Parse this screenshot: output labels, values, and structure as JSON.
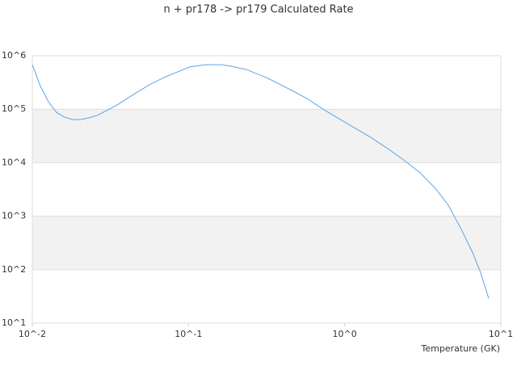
{
  "chart_data": {
    "type": "line",
    "title": "n + pr178 -> pr179 Calculated Rate",
    "x_label": "Temperature (GK)",
    "x_scale": "log",
    "y_scale": "log",
    "grid_bands": true,
    "band_color": "#f2f2f2",
    "xlim": [
      0.01,
      10
    ],
    "ylim": [
      10,
      1000000
    ],
    "xticks": [
      {
        "value": 0.01,
        "label": "10^-2"
      },
      {
        "value": 0.1,
        "label": "10^-1"
      },
      {
        "value": 1,
        "label": "10^0"
      },
      {
        "value": 10,
        "label": "10^1"
      }
    ],
    "yticks": [
      {
        "value": 10,
        "label": "10^1"
      },
      {
        "value": 100,
        "label": "10^2"
      },
      {
        "value": 1000,
        "label": "10^3"
      },
      {
        "value": 10000,
        "label": "10^4"
      },
      {
        "value": 100000,
        "label": "10^5"
      },
      {
        "value": 1000000,
        "label": "10^6"
      }
    ],
    "x": [
      0.01,
      0.01127,
      0.01269,
      0.01429,
      0.0161,
      0.01815,
      0.0204,
      0.023,
      0.0259,
      0.0292,
      0.0349,
      0.0443,
      0.0562,
      0.0714,
      0.0853,
      0.102,
      0.129,
      0.164,
      0.196,
      0.235,
      0.316,
      0.452,
      0.574,
      0.728,
      0.924,
      1.17,
      1.49,
      1.89,
      2.39,
      3.04,
      3.85,
      4.61,
      5.51,
      6.59,
      7.43,
      8.36
    ],
    "series": [
      {
        "color": "#5aa5e6",
        "values": [
          680000,
          270000,
          138000,
          87000,
          71000,
          64000,
          64000,
          69000,
          76000,
          91000,
          120000,
          188000,
          286000,
          405000,
          500000,
          620000,
          680000,
          680000,
          620000,
          550000,
          390000,
          230000,
          158000,
          100000,
          66000,
          44000,
          29000,
          18300,
          11200,
          6500,
          3200,
          1600,
          610,
          210,
          87,
          29
        ]
      }
    ]
  }
}
